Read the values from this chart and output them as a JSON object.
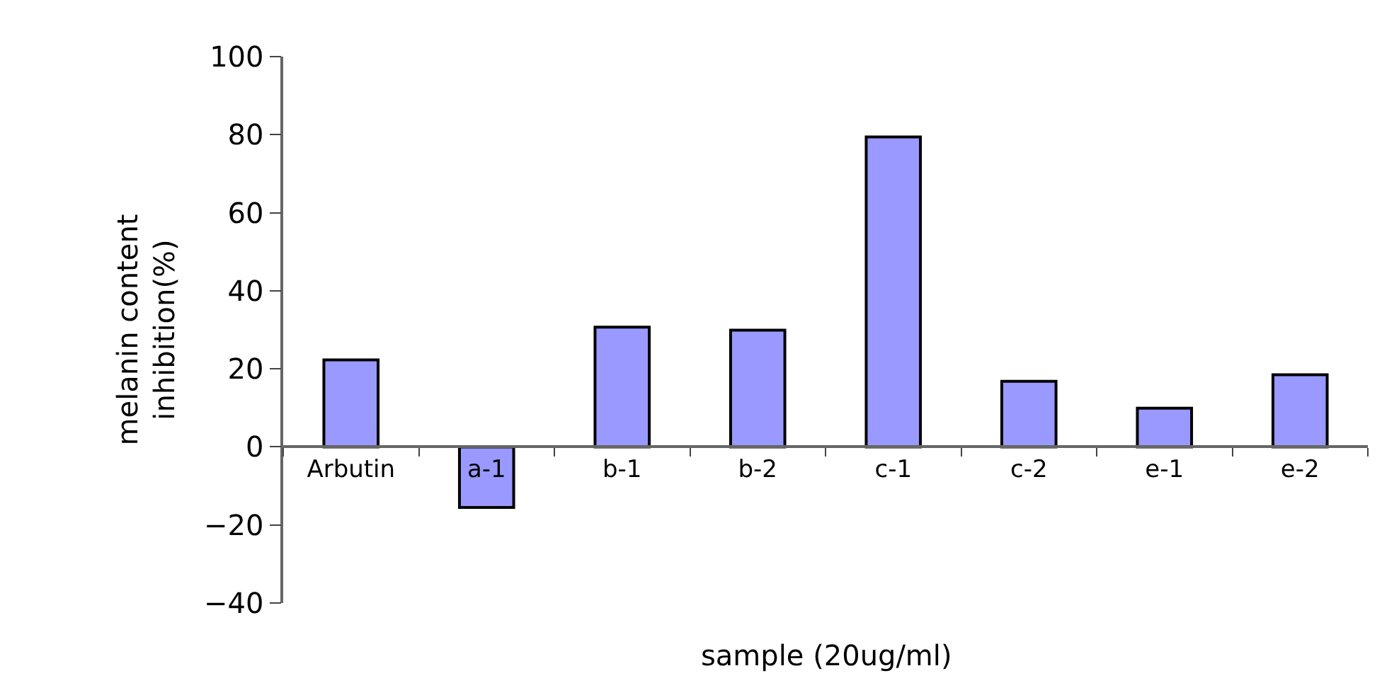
{
  "chart_data": {
    "type": "bar",
    "xlabel": "sample (20ug/ml)",
    "ylabel": "melanin content\ninhibition(%)",
    "categories": [
      "Arbutin",
      "a-1",
      "b-1",
      "b-2",
      "c-1",
      "c-2",
      "e-1",
      "e-2"
    ],
    "values": [
      22.3,
      -15.5,
      30.7,
      29.9,
      79.4,
      16.8,
      9.9,
      18.5
    ],
    "color": "#9999ff",
    "ylim": [
      -40,
      100
    ],
    "yticks": [
      {
        "value": -40,
        "label": "−40"
      },
      {
        "value": -20,
        "label": "−20"
      },
      0,
      20,
      40,
      60,
      80,
      100
    ],
    "legend": false
  }
}
